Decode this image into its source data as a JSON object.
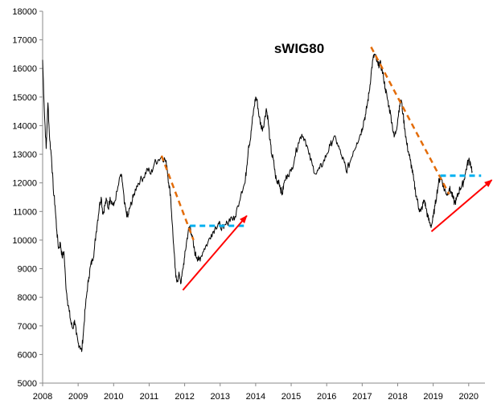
{
  "chart_data": {
    "type": "line",
    "title": "sWIG80",
    "xlabel": "",
    "ylabel": "",
    "xlim": [
      2008,
      2020.35
    ],
    "ylim": [
      5000,
      18000
    ],
    "x_ticks": [
      "2008",
      "2009",
      "2010",
      "2011",
      "2012",
      "2013",
      "2014",
      "2015",
      "2016",
      "2017",
      "2018",
      "2019",
      "2020"
    ],
    "y_ticks": [
      "5000",
      "6000",
      "7000",
      "8000",
      "9000",
      "10000",
      "11000",
      "12000",
      "13000",
      "14000",
      "15000",
      "16000",
      "17000",
      "18000"
    ],
    "grid": false,
    "legend": "none",
    "series": [
      {
        "color": "#000000",
        "points": [
          [
            2008.0,
            16300
          ],
          [
            2008.05,
            14500
          ],
          [
            2008.1,
            13200
          ],
          [
            2008.15,
            14800
          ],
          [
            2008.2,
            13500
          ],
          [
            2008.25,
            12900
          ],
          [
            2008.3,
            11800
          ],
          [
            2008.35,
            11200
          ],
          [
            2008.4,
            10300
          ],
          [
            2008.45,
            9700
          ],
          [
            2008.5,
            9900
          ],
          [
            2008.55,
            9400
          ],
          [
            2008.6,
            9600
          ],
          [
            2008.65,
            8500
          ],
          [
            2008.7,
            7900
          ],
          [
            2008.75,
            7500
          ],
          [
            2008.8,
            7100
          ],
          [
            2008.85,
            6900
          ],
          [
            2008.9,
            7200
          ],
          [
            2008.95,
            6700
          ],
          [
            2009.0,
            6400
          ],
          [
            2009.05,
            6300
          ],
          [
            2009.1,
            6100
          ],
          [
            2009.15,
            6800
          ],
          [
            2009.2,
            7600
          ],
          [
            2009.25,
            8200
          ],
          [
            2009.3,
            8700
          ],
          [
            2009.35,
            9100
          ],
          [
            2009.4,
            9300
          ],
          [
            2009.45,
            9600
          ],
          [
            2009.5,
            10200
          ],
          [
            2009.55,
            10700
          ],
          [
            2009.6,
            11200
          ],
          [
            2009.65,
            11500
          ],
          [
            2009.7,
            10900
          ],
          [
            2009.75,
            11200
          ],
          [
            2009.8,
            11400
          ],
          [
            2009.85,
            11100
          ],
          [
            2009.9,
            11500
          ],
          [
            2009.95,
            11300
          ],
          [
            2010.0,
            11200
          ],
          [
            2010.1,
            11700
          ],
          [
            2010.2,
            12300
          ],
          [
            2010.25,
            12000
          ],
          [
            2010.3,
            11300
          ],
          [
            2010.35,
            11000
          ],
          [
            2010.4,
            10800
          ],
          [
            2010.45,
            11100
          ],
          [
            2010.5,
            11300
          ],
          [
            2010.55,
            11500
          ],
          [
            2010.65,
            11900
          ],
          [
            2010.75,
            12100
          ],
          [
            2010.85,
            12200
          ],
          [
            2010.95,
            12500
          ],
          [
            2011.05,
            12300
          ],
          [
            2011.15,
            12700
          ],
          [
            2011.25,
            12800
          ],
          [
            2011.35,
            12900
          ],
          [
            2011.45,
            12800
          ],
          [
            2011.5,
            12600
          ],
          [
            2011.55,
            12000
          ],
          [
            2011.6,
            11600
          ],
          [
            2011.65,
            10600
          ],
          [
            2011.7,
            9600
          ],
          [
            2011.75,
            8700
          ],
          [
            2011.8,
            8600
          ],
          [
            2011.85,
            8800
          ],
          [
            2011.9,
            8500
          ],
          [
            2011.95,
            9000
          ],
          [
            2012.0,
            9400
          ],
          [
            2012.05,
            9900
          ],
          [
            2012.1,
            10300
          ],
          [
            2012.15,
            10500
          ],
          [
            2012.2,
            10200
          ],
          [
            2012.25,
            9800
          ],
          [
            2012.3,
            9500
          ],
          [
            2012.35,
            9400
          ],
          [
            2012.4,
            9300
          ],
          [
            2012.45,
            9400
          ],
          [
            2012.55,
            9700
          ],
          [
            2012.65,
            9900
          ],
          [
            2012.75,
            10200
          ],
          [
            2012.85,
            10400
          ],
          [
            2012.95,
            10600
          ],
          [
            2013.0,
            10500
          ],
          [
            2013.1,
            10400
          ],
          [
            2013.2,
            10600
          ],
          [
            2013.3,
            10800
          ],
          [
            2013.4,
            10700
          ],
          [
            2013.5,
            11200
          ],
          [
            2013.6,
            11700
          ],
          [
            2013.7,
            12000
          ],
          [
            2013.75,
            12600
          ],
          [
            2013.8,
            13300
          ],
          [
            2013.85,
            13500
          ],
          [
            2013.9,
            14100
          ],
          [
            2013.95,
            14600
          ],
          [
            2014.0,
            15000
          ],
          [
            2014.05,
            14800
          ],
          [
            2014.1,
            14300
          ],
          [
            2014.15,
            14000
          ],
          [
            2014.2,
            13900
          ],
          [
            2014.25,
            14200
          ],
          [
            2014.3,
            14600
          ],
          [
            2014.35,
            14200
          ],
          [
            2014.4,
            13500
          ],
          [
            2014.45,
            13000
          ],
          [
            2014.5,
            12800
          ],
          [
            2014.55,
            12300
          ],
          [
            2014.6,
            12000
          ],
          [
            2014.65,
            12100
          ],
          [
            2014.7,
            11800
          ],
          [
            2014.75,
            11600
          ],
          [
            2014.8,
            12000
          ],
          [
            2014.9,
            12300
          ],
          [
            2015.0,
            12400
          ],
          [
            2015.1,
            12900
          ],
          [
            2015.2,
            13400
          ],
          [
            2015.3,
            13700
          ],
          [
            2015.4,
            13500
          ],
          [
            2015.5,
            13000
          ],
          [
            2015.6,
            12600
          ],
          [
            2015.7,
            12300
          ],
          [
            2015.8,
            12500
          ],
          [
            2015.9,
            12700
          ],
          [
            2016.0,
            13000
          ],
          [
            2016.1,
            13300
          ],
          [
            2016.2,
            13600
          ],
          [
            2016.3,
            13400
          ],
          [
            2016.4,
            13000
          ],
          [
            2016.5,
            12700
          ],
          [
            2016.55,
            12400
          ],
          [
            2016.65,
            12700
          ],
          [
            2016.75,
            13100
          ],
          [
            2016.85,
            13400
          ],
          [
            2016.95,
            13700
          ],
          [
            2017.0,
            13900
          ],
          [
            2017.05,
            14200
          ],
          [
            2017.1,
            14400
          ],
          [
            2017.15,
            14800
          ],
          [
            2017.2,
            15200
          ],
          [
            2017.25,
            15800
          ],
          [
            2017.3,
            16300
          ],
          [
            2017.35,
            16500
          ],
          [
            2017.4,
            16300
          ],
          [
            2017.45,
            16100
          ],
          [
            2017.5,
            16200
          ],
          [
            2017.55,
            16000
          ],
          [
            2017.6,
            15700
          ],
          [
            2017.65,
            15300
          ],
          [
            2017.7,
            15000
          ],
          [
            2017.75,
            14700
          ],
          [
            2017.8,
            14400
          ],
          [
            2017.85,
            14000
          ],
          [
            2017.9,
            13600
          ],
          [
            2017.95,
            13800
          ],
          [
            2018.0,
            14200
          ],
          [
            2018.05,
            14700
          ],
          [
            2018.1,
            14900
          ],
          [
            2018.15,
            14400
          ],
          [
            2018.2,
            13900
          ],
          [
            2018.25,
            13400
          ],
          [
            2018.3,
            13100
          ],
          [
            2018.35,
            12800
          ],
          [
            2018.4,
            12500
          ],
          [
            2018.45,
            12100
          ],
          [
            2018.5,
            11700
          ],
          [
            2018.55,
            11400
          ],
          [
            2018.6,
            11100
          ],
          [
            2018.65,
            11000
          ],
          [
            2018.7,
            11200
          ],
          [
            2018.75,
            11400
          ],
          [
            2018.8,
            11100
          ],
          [
            2018.85,
            10800
          ],
          [
            2018.9,
            10600
          ],
          [
            2018.95,
            10500
          ],
          [
            2019.0,
            10800
          ],
          [
            2019.05,
            11200
          ],
          [
            2019.1,
            11600
          ],
          [
            2019.15,
            12000
          ],
          [
            2019.2,
            12200
          ],
          [
            2019.25,
            12100
          ],
          [
            2019.3,
            11800
          ],
          [
            2019.35,
            11700
          ],
          [
            2019.4,
            11600
          ],
          [
            2019.45,
            11800
          ],
          [
            2019.5,
            11700
          ],
          [
            2019.55,
            11500
          ],
          [
            2019.6,
            11300
          ],
          [
            2019.65,
            11400
          ],
          [
            2019.7,
            11600
          ],
          [
            2019.75,
            11800
          ],
          [
            2019.8,
            11900
          ],
          [
            2019.85,
            12000
          ],
          [
            2019.9,
            12300
          ],
          [
            2019.95,
            12600
          ],
          [
            2020.0,
            12800
          ],
          [
            2020.05,
            12700
          ],
          [
            2020.1,
            12400
          ]
        ]
      }
    ],
    "annotations": [
      {
        "kind": "dashed-line",
        "color": "#e36c09",
        "from": [
          2011.35,
          12950
        ],
        "to": [
          2012.25,
          10000
        ]
      },
      {
        "kind": "dashed-line",
        "color": "#00b0f0",
        "from": [
          2012.15,
          10500
        ],
        "to": [
          2013.75,
          10500
        ]
      },
      {
        "kind": "arrow",
        "color": "#ff0000",
        "from": [
          2011.95,
          8250
        ],
        "to": [
          2013.75,
          10850
        ]
      },
      {
        "kind": "dashed-line",
        "color": "#e36c09",
        "from": [
          2017.25,
          16750
        ],
        "to": [
          2019.45,
          11600
        ]
      },
      {
        "kind": "dashed-line",
        "color": "#00b0f0",
        "from": [
          2019.2,
          12250
        ],
        "to": [
          2020.35,
          12250
        ]
      },
      {
        "kind": "arrow",
        "color": "#ff0000",
        "from": [
          2018.95,
          10300
        ],
        "to": [
          2020.65,
          12100
        ]
      }
    ]
  }
}
